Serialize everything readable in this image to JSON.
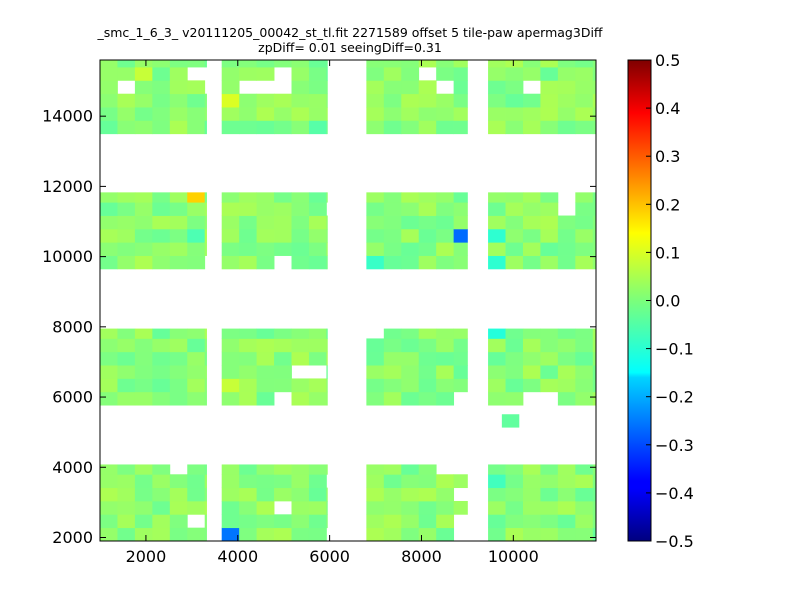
{
  "chart_data": {
    "type": "heatmap",
    "title": "_smc_1_6_3_ v20111205_00042_st_tl.fit 2271589 offset 5 tile-paw apermag3Diff",
    "subtitle": "zpDiff= 0.01 seeingDiff=0.31",
    "xlabel": "",
    "ylabel": "",
    "xlim": [
      1000,
      11800
    ],
    "ylim": [
      1900,
      15600
    ],
    "xticks": [
      "2000",
      "4000",
      "6000",
      "8000",
      "10000"
    ],
    "yticks": [
      "2000",
      "4000",
      "6000",
      "8000",
      "10000",
      "12000",
      "14000"
    ],
    "colormap": "jet",
    "colorbar": {
      "range": [
        -0.5,
        0.5
      ],
      "ticks": [
        "0.5",
        "0.4",
        "0.3",
        "0.2",
        "0.1",
        "0.0",
        "−0.1",
        "−0.2",
        "−0.3",
        "−0.4",
        "−0.5"
      ]
    },
    "bin_size": 380,
    "panels": {
      "x_ranges": [
        [
          1000,
          3320
        ],
        [
          3650,
          5950
        ],
        [
          6800,
          9000
        ],
        [
          9450,
          11800
        ]
      ],
      "y_ranges": [
        [
          1900,
          4080
        ],
        [
          5770,
          7950
        ],
        [
          9650,
          11830
        ],
        [
          13500,
          15600
        ]
      ],
      "typical_value": 0.01
    },
    "outliers": [
      {
        "x": 3270,
        "y": 11700,
        "value": 0.17
      },
      {
        "x": 8900,
        "y": 10750,
        "value": -0.27
      },
      {
        "x": 3870,
        "y": 2200,
        "value": -0.26
      },
      {
        "x": 9650,
        "y": 10700,
        "value": -0.08
      },
      {
        "x": 9650,
        "y": 9950,
        "value": -0.08
      },
      {
        "x": 9650,
        "y": 7700,
        "value": -0.09
      },
      {
        "x": 9650,
        "y": 3580,
        "value": -0.06
      },
      {
        "x": 9940,
        "y": 5320,
        "value": -0.03
      },
      {
        "x": 3880,
        "y": 6330,
        "value": 0.07
      },
      {
        "x": 3880,
        "y": 14500,
        "value": 0.09
      },
      {
        "x": 1880,
        "y": 15150,
        "value": 0.07
      },
      {
        "x": 7000,
        "y": 10000,
        "value": -0.07
      },
      {
        "x": 5680,
        "y": 13800,
        "value": -0.04
      },
      {
        "x": 2950,
        "y": 10500,
        "value": -0.05
      }
    ],
    "holes": [
      [
        3000,
        15200
      ],
      [
        3300,
        14830
      ],
      [
        1400,
        14830
      ],
      [
        1750,
        14830
      ],
      [
        3300,
        15200
      ],
      [
        4200,
        14830
      ],
      [
        4650,
        14830
      ],
      [
        4900,
        14830
      ],
      [
        5000,
        15200
      ],
      [
        8100,
        15200
      ],
      [
        8500,
        14830
      ],
      [
        10500,
        14830
      ],
      [
        4900,
        10000
      ],
      [
        3300,
        9950
      ],
      [
        5400,
        6700
      ],
      [
        5700,
        6700
      ],
      [
        5000,
        5950
      ],
      [
        7100,
        7800
      ],
      [
        8700,
        5950
      ],
      [
        9000,
        5950
      ],
      [
        10500,
        5950
      ],
      [
        10800,
        5950
      ],
      [
        8600,
        3900
      ],
      [
        8900,
        3900
      ],
      [
        8700,
        3400
      ],
      [
        9000,
        2400
      ],
      [
        9000,
        2000
      ],
      [
        2600,
        3900
      ],
      [
        3250,
        2400
      ],
      [
        5050,
        3000
      ],
      [
        6050,
        2000
      ],
      [
        6250,
        3600
      ],
      [
        11050,
        11700
      ],
      [
        11000,
        11400
      ],
      [
        6300,
        11400
      ]
    ]
  }
}
